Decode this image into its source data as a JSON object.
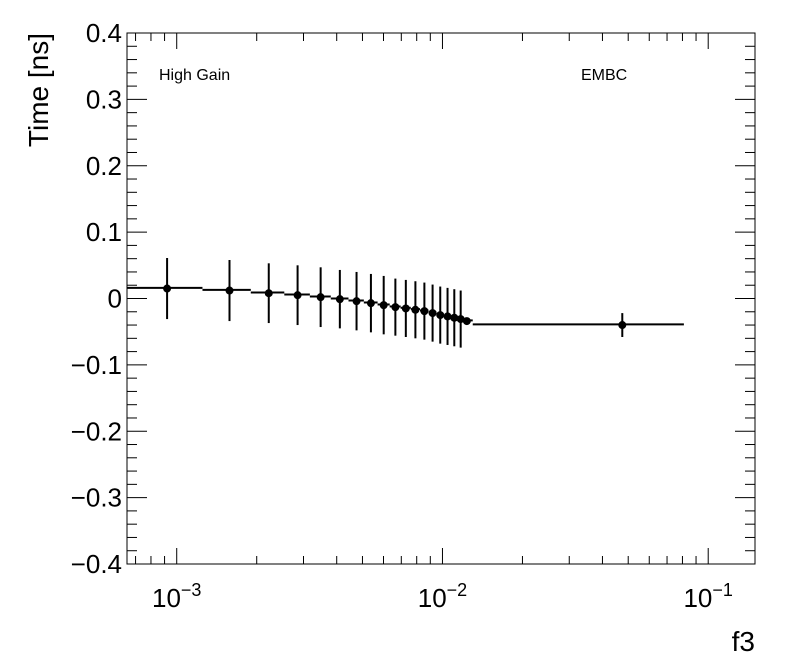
{
  "chart_data": {
    "type": "scatter",
    "title": "",
    "xlabel": "f3",
    "ylabel": "Time [ns]",
    "xscale": "log",
    "xlim": [
      0.00065,
      0.15
    ],
    "ylim": [
      -0.4,
      0.4
    ],
    "grid": false,
    "legend": "none",
    "annotations": [
      "High Gain",
      "EMBC"
    ],
    "x_tick_labels": [
      {
        "base": "10",
        "exp": "−3",
        "value": 0.001
      },
      {
        "base": "10",
        "exp": "−2",
        "value": 0.01
      },
      {
        "base": "10",
        "exp": "−1",
        "value": 0.1
      }
    ],
    "y_tick_labels": [
      {
        "label": "0.4",
        "value": 0.4
      },
      {
        "label": "0.3",
        "value": 0.3
      },
      {
        "label": "0.2",
        "value": 0.2
      },
      {
        "label": "0.1",
        "value": 0.1
      },
      {
        "label": "0",
        "value": 0
      },
      {
        "label": "−0.1",
        "value": -0.1
      },
      {
        "label": "−0.2",
        "value": -0.2
      },
      {
        "label": "−0.3",
        "value": -0.3
      },
      {
        "label": "−0.4",
        "value": -0.4
      }
    ],
    "series": [
      {
        "points": [
          {
            "x": 0.00092,
            "y": 0.015,
            "err": 0.046
          },
          {
            "x": 0.00158,
            "y": 0.012,
            "err": 0.046
          },
          {
            "x": 0.00222,
            "y": 0.008,
            "err": 0.045
          },
          {
            "x": 0.00285,
            "y": 0.005,
            "err": 0.045
          },
          {
            "x": 0.00348,
            "y": 0.002,
            "err": 0.045
          },
          {
            "x": 0.00411,
            "y": -0.001,
            "err": 0.044
          },
          {
            "x": 0.00475,
            "y": -0.004,
            "err": 0.044
          },
          {
            "x": 0.00538,
            "y": -0.007,
            "err": 0.044
          },
          {
            "x": 0.00601,
            "y": -0.01,
            "err": 0.044
          },
          {
            "x": 0.00665,
            "y": -0.013,
            "err": 0.043
          },
          {
            "x": 0.00728,
            "y": -0.015,
            "err": 0.043
          },
          {
            "x": 0.00791,
            "y": -0.017,
            "err": 0.043
          },
          {
            "x": 0.00855,
            "y": -0.019,
            "err": 0.043
          },
          {
            "x": 0.00918,
            "y": -0.022,
            "err": 0.043
          },
          {
            "x": 0.00981,
            "y": -0.025,
            "err": 0.043
          },
          {
            "x": 0.01045,
            "y": -0.027,
            "err": 0.043
          },
          {
            "x": 0.01108,
            "y": -0.029,
            "err": 0.043
          },
          {
            "x": 0.01171,
            "y": -0.031,
            "err": 0.043
          },
          {
            "x": 0.01235,
            "y": -0.034,
            "err": 0.0
          },
          {
            "x": 0.0475,
            "y": -0.04,
            "err": 0.018
          }
        ],
        "fit_steps": [
          {
            "x1": 0.00065,
            "x2": 0.00125,
            "y": 0.016
          },
          {
            "x1": 0.00125,
            "x2": 0.0019,
            "y": 0.013
          },
          {
            "x1": 0.0019,
            "x2": 0.00254,
            "y": 0.009
          },
          {
            "x1": 0.00254,
            "x2": 0.00317,
            "y": 0.006
          },
          {
            "x1": 0.00317,
            "x2": 0.0038,
            "y": 0.003
          },
          {
            "x1": 0.0038,
            "x2": 0.00443,
            "y": 0.0
          },
          {
            "x1": 0.00443,
            "x2": 0.00506,
            "y": -0.003
          },
          {
            "x1": 0.00506,
            "x2": 0.0057,
            "y": -0.006
          },
          {
            "x1": 0.0057,
            "x2": 0.00633,
            "y": -0.009
          },
          {
            "x1": 0.00633,
            "x2": 0.00696,
            "y": -0.012
          },
          {
            "x1": 0.00696,
            "x2": 0.0076,
            "y": -0.014
          },
          {
            "x1": 0.0076,
            "x2": 0.00823,
            "y": -0.016
          },
          {
            "x1": 0.00823,
            "x2": 0.00886,
            "y": -0.018
          },
          {
            "x1": 0.00886,
            "x2": 0.0095,
            "y": -0.021
          },
          {
            "x1": 0.0095,
            "x2": 0.01013,
            "y": -0.024
          },
          {
            "x1": 0.01013,
            "x2": 0.01076,
            "y": -0.026
          },
          {
            "x1": 0.01076,
            "x2": 0.0114,
            "y": -0.028
          },
          {
            "x1": 0.0114,
            "x2": 0.01203,
            "y": -0.03
          },
          {
            "x1": 0.01203,
            "x2": 0.013,
            "y": -0.033
          },
          {
            "x1": 0.013,
            "x2": 0.081,
            "y": -0.039
          }
        ]
      }
    ]
  }
}
